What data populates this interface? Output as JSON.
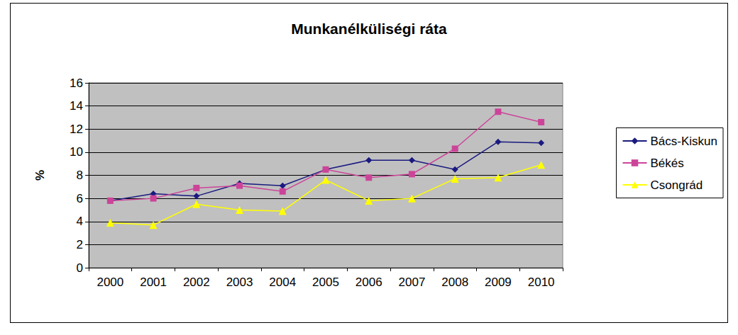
{
  "chart_data": {
    "type": "line",
    "title": "Munkanélküliségi ráta",
    "y_label": "%",
    "categories": [
      "2000",
      "2001",
      "2002",
      "2003",
      "2004",
      "2005",
      "2006",
      "2007",
      "2008",
      "2009",
      "2010"
    ],
    "series": [
      {
        "name": "Bács-Kiskun",
        "color": "#1a1a80",
        "marker": "diamond",
        "values": [
          5.8,
          6.4,
          6.2,
          7.3,
          7.1,
          8.5,
          9.3,
          9.3,
          8.5,
          10.9,
          10.8
        ]
      },
      {
        "name": "Békés",
        "color": "#cc4499",
        "marker": "square",
        "values": [
          5.8,
          6.0,
          6.9,
          7.1,
          6.6,
          8.5,
          7.8,
          8.1,
          10.3,
          13.5,
          12.6
        ]
      },
      {
        "name": "Csongrád",
        "color": "#ffff00",
        "marker": "triangle",
        "values": [
          3.9,
          3.7,
          5.5,
          5.0,
          4.9,
          7.6,
          5.8,
          6.0,
          7.7,
          7.8,
          8.9
        ]
      }
    ],
    "ylim": [
      0,
      16
    ],
    "yticks": [
      0,
      2,
      4,
      6,
      8,
      10,
      12,
      14,
      16
    ],
    "grid": true,
    "legend": "right"
  }
}
